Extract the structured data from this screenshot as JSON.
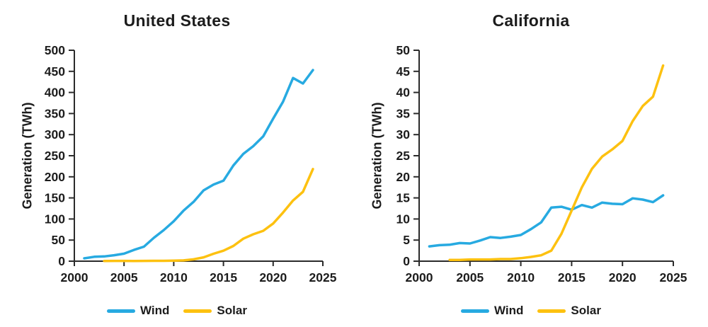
{
  "figure": {
    "background_color": "#ffffff",
    "text_color": "#1c1c1c",
    "axis_color": "#2b2b2b"
  },
  "chart_data": [
    {
      "id": "united-states",
      "type": "line",
      "title": "United States",
      "ylabel": "Generation (TWh)",
      "xlabel": "",
      "xlim": [
        2000,
        2025
      ],
      "ylim": [
        0,
        500
      ],
      "grid": false,
      "legend_position": "bottom-center",
      "x_ticks": [
        2000,
        2005,
        2010,
        2015,
        2020,
        2025
      ],
      "y_ticks": [
        0,
        50,
        100,
        150,
        200,
        250,
        300,
        350,
        400,
        450,
        500
      ],
      "series": [
        {
          "name": "Wind",
          "color": "#27AAE1",
          "x": [
            2001,
            2002,
            2003,
            2004,
            2005,
            2006,
            2007,
            2008,
            2009,
            2010,
            2011,
            2012,
            2013,
            2014,
            2015,
            2016,
            2017,
            2018,
            2019,
            2020,
            2021,
            2022,
            2023,
            2024
          ],
          "values": [
            6.7,
            10.4,
            11.2,
            14.1,
            17.8,
            26.6,
            34.4,
            55.4,
            73.9,
            94.7,
            120.2,
            140.8,
            167.8,
            181.7,
            190.7,
            226.9,
            254.3,
            272.7,
            295.9,
            337.9,
            378.2,
            434.3,
            421.1,
            453.0
          ]
        },
        {
          "name": "Solar",
          "color": "#FDC110",
          "x": [
            2003,
            2004,
            2005,
            2006,
            2007,
            2008,
            2009,
            2010,
            2011,
            2012,
            2013,
            2014,
            2015,
            2016,
            2017,
            2018,
            2019,
            2020,
            2021,
            2022,
            2023,
            2024
          ],
          "values": [
            0.5,
            0.6,
            0.6,
            0.5,
            0.6,
            0.9,
            0.9,
            1.2,
            1.8,
            4.3,
            9.0,
            17.7,
            24.9,
            36.0,
            53.3,
            63.8,
            71.9,
            89.2,
            115.3,
            143.8,
            164.5,
            218.5
          ]
        }
      ]
    },
    {
      "id": "california",
      "type": "line",
      "title": "California",
      "ylabel": "Generation (TWh)",
      "xlabel": "",
      "xlim": [
        2000,
        2025
      ],
      "ylim": [
        0,
        50
      ],
      "grid": false,
      "legend_position": "bottom-center",
      "x_ticks": [
        2000,
        2005,
        2010,
        2015,
        2020,
        2025
      ],
      "y_ticks": [
        0,
        5,
        10,
        15,
        20,
        25,
        30,
        35,
        40,
        45,
        50
      ],
      "series": [
        {
          "name": "Wind",
          "color": "#27AAE1",
          "x": [
            2001,
            2002,
            2003,
            2004,
            2005,
            2006,
            2007,
            2008,
            2009,
            2010,
            2011,
            2012,
            2013,
            2014,
            2015,
            2016,
            2017,
            2018,
            2019,
            2020,
            2021,
            2022,
            2023,
            2024
          ],
          "values": [
            3.5,
            3.8,
            3.9,
            4.3,
            4.2,
            4.9,
            5.7,
            5.5,
            5.8,
            6.2,
            7.6,
            9.2,
            12.7,
            12.9,
            12.2,
            13.3,
            12.7,
            13.9,
            13.6,
            13.5,
            14.9,
            14.6,
            14.0,
            15.6
          ]
        },
        {
          "name": "Solar",
          "color": "#FDC110",
          "x": [
            2003,
            2004,
            2005,
            2006,
            2007,
            2008,
            2009,
            2010,
            2011,
            2012,
            2013,
            2014,
            2015,
            2016,
            2017,
            2018,
            2019,
            2020,
            2021,
            2022,
            2023,
            2024
          ],
          "values": [
            0.3,
            0.3,
            0.4,
            0.4,
            0.4,
            0.5,
            0.5,
            0.7,
            1.0,
            1.4,
            2.5,
            6.5,
            12.0,
            17.5,
            21.9,
            24.8,
            26.5,
            28.5,
            33.2,
            36.8,
            39.0,
            46.4
          ]
        }
      ]
    }
  ]
}
